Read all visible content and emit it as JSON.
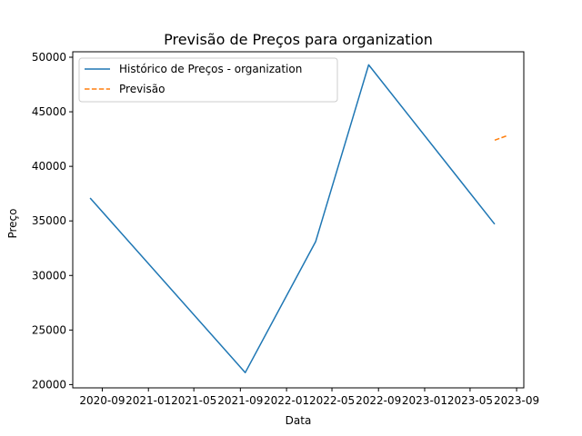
{
  "chart_data": {
    "type": "line",
    "title": "Previsão de Preços para organization",
    "xlabel": "Data",
    "ylabel": "Preço",
    "x_type": "date",
    "xlim": [
      "2020-06-15",
      "2023-09-20"
    ],
    "ylim": [
      19700,
      50500
    ],
    "x_ticks": [
      {
        "date": "2020-09-01",
        "label": "2020-09"
      },
      {
        "date": "2021-01-01",
        "label": "2021-01"
      },
      {
        "date": "2021-05-01",
        "label": "2021-05"
      },
      {
        "date": "2021-09-01",
        "label": "2021-09"
      },
      {
        "date": "2022-01-01",
        "label": "2022-01"
      },
      {
        "date": "2022-05-01",
        "label": "2022-05"
      },
      {
        "date": "2022-09-01",
        "label": "2022-09"
      },
      {
        "date": "2023-01-01",
        "label": "2023-01"
      },
      {
        "date": "2023-05-01",
        "label": "2023-05"
      },
      {
        "date": "2023-09-01",
        "label": "2023-09"
      }
    ],
    "y_ticks": [
      20000,
      25000,
      30000,
      35000,
      40000,
      45000,
      50000
    ],
    "grid": false,
    "legend_position": "top-left",
    "series": [
      {
        "name": "Histórico de Preços - organization",
        "color": "#1f77b4",
        "style": "solid",
        "points": [
          {
            "x": "2020-07-31",
            "y": 37100
          },
          {
            "x": "2021-09-14",
            "y": 21100
          },
          {
            "x": "2022-03-19",
            "y": 33100
          },
          {
            "x": "2022-08-06",
            "y": 49300
          },
          {
            "x": "2023-07-05",
            "y": 34700
          }
        ]
      },
      {
        "name": "Previsão",
        "color": "#ff7f0e",
        "style": "dashed",
        "points": [
          {
            "x": "2023-07-05",
            "y": 42400
          },
          {
            "x": "2023-08-06",
            "y": 42800
          }
        ]
      }
    ]
  }
}
